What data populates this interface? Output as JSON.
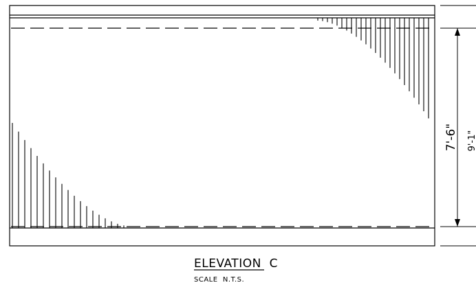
{
  "drawing": {
    "title": "ELEVATION  C",
    "scale": "SCALE  N.T.S.",
    "dimensions": {
      "inner_height": "7'-6\"",
      "outer_height": "9'-1\""
    },
    "stroke_color": "#000000",
    "background_color": "#ffffff"
  }
}
